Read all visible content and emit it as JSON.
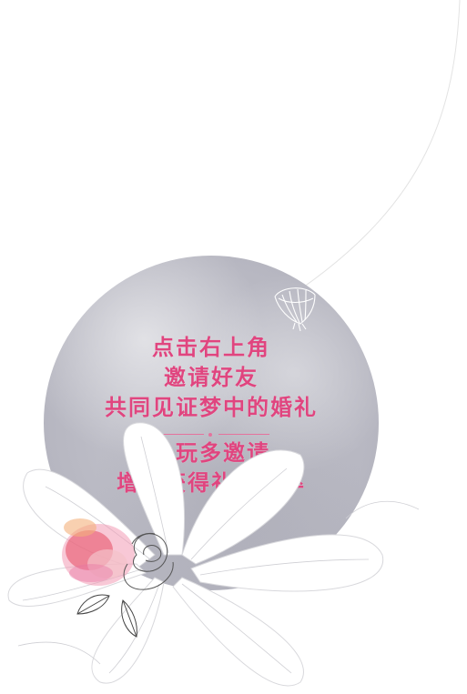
{
  "invitation": {
    "lines_top": [
      "点击右上角",
      "邀请好友",
      "共同见证梦中的婚礼"
    ],
    "lines_bottom": [
      "多玩多邀请",
      "增加获得礼裙几率"
    ]
  },
  "colors": {
    "accent": "#e0457f",
    "circle": "#b9b9c3"
  },
  "icons": {
    "lantern": "hanging-lantern-icon",
    "flowers": "flower-bouquet-illustration"
  }
}
